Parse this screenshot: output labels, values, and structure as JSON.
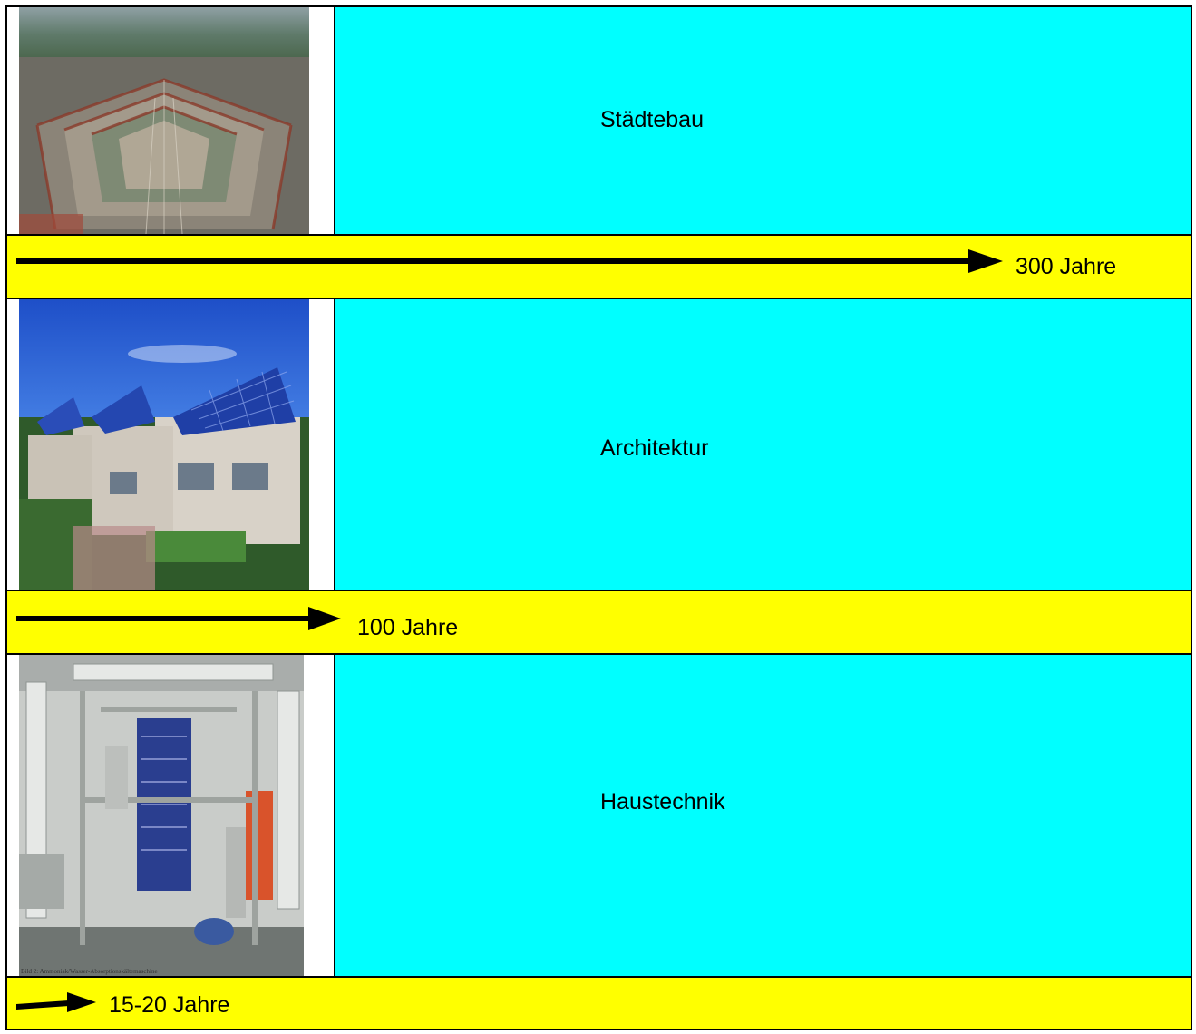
{
  "sections": [
    {
      "label": "Städtebau",
      "duration": "300 Jahre",
      "photo": "aerial-city-photo"
    },
    {
      "label": "Architektur",
      "duration": "100 Jahre",
      "photo": "solar-houses-photo"
    },
    {
      "label": "Haustechnik",
      "duration": "15-20 Jahre",
      "photo": "building-services-plant-photo",
      "photo_caption": "Bild 2: Ammoniak/Wasser-Absorptionskältemaschine"
    }
  ],
  "colors": {
    "label_background": "#00ffff",
    "bar_background": "#ffff00",
    "border": "#000000"
  }
}
